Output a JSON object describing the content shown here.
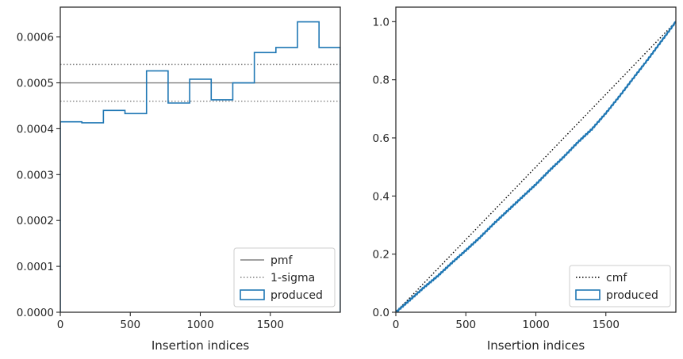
{
  "chart_data": [
    {
      "type": "step",
      "title": "",
      "xlabel": "Insertion indices",
      "ylabel": "",
      "xlim": [
        0,
        2000
      ],
      "ylim": [
        0,
        0.000665
      ],
      "xticks": [
        0,
        500,
        1000,
        1500
      ],
      "xtick_labels": [
        "0",
        "500",
        "1000",
        "1500"
      ],
      "yticks": [
        0,
        0.0001,
        0.0002,
        0.0003,
        0.0004,
        0.0005,
        0.0006
      ],
      "ytick_labels": [
        "0.0000",
        "0.0001",
        "0.0002",
        "0.0003",
        "0.0004",
        "0.0005",
        "0.0006"
      ],
      "reference_lines": [
        {
          "name": "pmf",
          "y": 0.0005,
          "style": "solid",
          "color": "#808080"
        },
        {
          "name": "1-sigma",
          "y": 0.00054,
          "style": "dotted",
          "color": "#808080"
        },
        {
          "name": "1-sigma",
          "y": 0.00046,
          "style": "dotted",
          "color": "#808080"
        }
      ],
      "series": [
        {
          "name": "produced",
          "color": "#1f77b4",
          "bin_edges": [
            0,
            154,
            308,
            462,
            616,
            770,
            924,
            1078,
            1232,
            1386,
            1540,
            1694,
            1848,
            2000
          ],
          "values": [
            0.000415,
            0.000413,
            0.00044,
            0.000433,
            0.000526,
            0.000456,
            0.000508,
            0.000463,
            0.0005,
            0.000566,
            0.000577,
            0.000633,
            0.000577
          ]
        }
      ],
      "legend": {
        "placement": "lower-right",
        "entries": [
          {
            "label": "pmf",
            "kind": "line-solid",
            "color": "#808080"
          },
          {
            "label": "1-sigma",
            "kind": "line-dotted",
            "color": "#808080"
          },
          {
            "label": "produced",
            "kind": "patch",
            "color": "#1f77b4"
          }
        ]
      }
    },
    {
      "type": "line",
      "title": "",
      "xlabel": "Insertion indices",
      "ylabel": "",
      "xlim": [
        0,
        2000
      ],
      "ylim": [
        0,
        1.05
      ],
      "xticks": [
        0,
        500,
        1000,
        1500
      ],
      "xtick_labels": [
        "0",
        "500",
        "1000",
        "1500"
      ],
      "yticks": [
        0,
        0.2,
        0.4,
        0.6,
        0.8,
        1.0
      ],
      "ytick_labels": [
        "0.0",
        "0.2",
        "0.4",
        "0.6",
        "0.8",
        "1.0"
      ],
      "series": [
        {
          "name": "cmf",
          "style": "dotted",
          "color": "#000000",
          "x": [
            0,
            2000
          ],
          "y": [
            0,
            1.0
          ]
        },
        {
          "name": "produced",
          "style": "solid",
          "color": "#1f77b4",
          "x": [
            0,
            100,
            200,
            300,
            400,
            500,
            600,
            700,
            800,
            900,
            1000,
            1100,
            1200,
            1300,
            1400,
            1500,
            1600,
            1700,
            1800,
            1900,
            2000
          ],
          "y": [
            0,
            0.042,
            0.085,
            0.125,
            0.17,
            0.213,
            0.257,
            0.305,
            0.35,
            0.395,
            0.44,
            0.489,
            0.535,
            0.585,
            0.63,
            0.685,
            0.745,
            0.808,
            0.87,
            0.935,
            1.0
          ]
        }
      ],
      "legend": {
        "placement": "lower-right",
        "entries": [
          {
            "label": "cmf",
            "kind": "line-dotted",
            "color": "#000000"
          },
          {
            "label": "produced",
            "kind": "patch",
            "color": "#1f77b4"
          }
        ]
      }
    }
  ]
}
